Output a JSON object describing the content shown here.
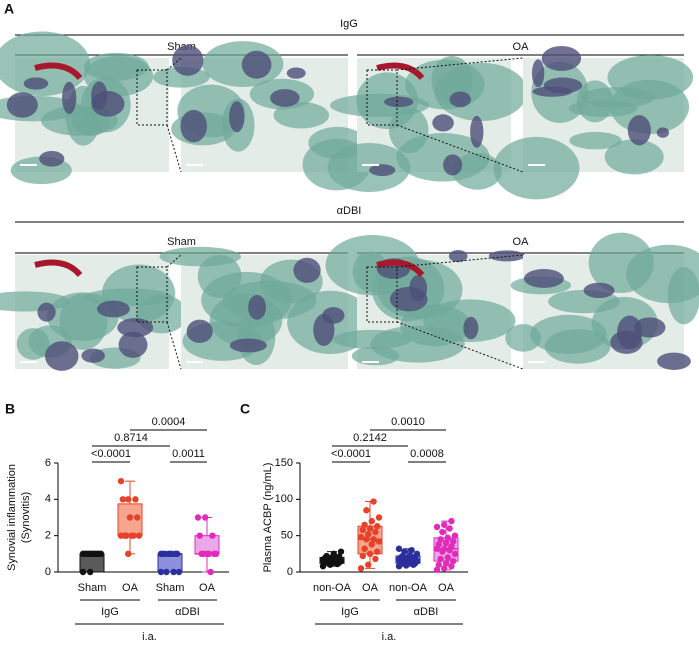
{
  "panel_a": {
    "label": "A",
    "rows": [
      {
        "title": "IgG",
        "columns": [
          "Sham",
          "OA"
        ]
      },
      {
        "title": "αDBI",
        "columns": [
          "Sham",
          "OA"
        ]
      }
    ]
  },
  "chart_data": [
    {
      "type": "box",
      "panel_label": "B",
      "ylabel": [
        "Synovial inflammation",
        "(Synovitis)"
      ],
      "categories": [
        "Sham",
        "OA",
        "Sham",
        "OA"
      ],
      "groups": [
        "IgG",
        "αDBI"
      ],
      "group_caption": "i.a.",
      "ylim": [
        0,
        6
      ],
      "yticks": [
        0,
        2,
        4,
        6
      ],
      "box_colors": [
        "#5a5a5a",
        "#f5a68c",
        "#8d90dc",
        "#eaa8ea"
      ],
      "point_colors": [
        "#111111",
        "#e8412a",
        "#2b2f9c",
        "#e02cb8"
      ],
      "comparisons": [
        "0.0004",
        "0.8714",
        "<0.0001",
        "0.0011"
      ],
      "boxes": [
        {
          "min": 0,
          "q1": 0,
          "median": 1,
          "q3": 1,
          "max": 1,
          "points": [
            1,
            1,
            1,
            1,
            1,
            1,
            1,
            1,
            1,
            1,
            1,
            0,
            0
          ]
        },
        {
          "min": 1,
          "q1": 2,
          "median": 2,
          "q3": 3.75,
          "max": 5,
          "points": [
            5,
            4,
            4,
            4,
            3,
            3,
            2,
            2,
            2,
            2,
            2,
            2,
            1
          ]
        },
        {
          "min": 0,
          "q1": 0,
          "median": 1,
          "q3": 1,
          "max": 1,
          "points": [
            1,
            1,
            1,
            1,
            1,
            1,
            1,
            1,
            0,
            0,
            0,
            0
          ]
        },
        {
          "min": 0,
          "q1": 1,
          "median": 1,
          "q3": 2,
          "max": 3,
          "points": [
            3,
            3,
            2,
            2,
            1,
            1,
            1,
            1,
            1,
            1,
            0
          ]
        }
      ]
    },
    {
      "type": "box",
      "panel_label": "C",
      "ylabel": [
        "Plasma ACBP (ng/mL)"
      ],
      "categories": [
        "non-OA",
        "OA",
        "non-OA",
        "OA"
      ],
      "groups": [
        "IgG",
        "αDBI"
      ],
      "group_caption": "i.a.",
      "ylim": [
        0,
        150
      ],
      "yticks": [
        0,
        50,
        100,
        150
      ],
      "box_colors": [
        "#5a5a5a",
        "#f5a68c",
        "#8d90dc",
        "#eaa8ea"
      ],
      "point_colors": [
        "#111111",
        "#e8412a",
        "#2b2f9c",
        "#e02cb8"
      ],
      "comparisons": [
        "0.0010",
        "0.2142",
        "<0.0001",
        "0.0008"
      ],
      "boxes": [
        {
          "min": 8,
          "q1": 12,
          "median": 15,
          "q3": 20,
          "max": 28,
          "points": [
            8,
            10,
            11,
            12,
            12,
            13,
            14,
            14,
            15,
            15,
            15,
            16,
            17,
            18,
            19,
            20,
            21,
            22,
            25,
            28
          ]
        },
        {
          "min": 5,
          "q1": 25,
          "median": 45,
          "q3": 63,
          "max": 97,
          "points": [
            5,
            10,
            18,
            22,
            25,
            28,
            32,
            38,
            42,
            45,
            45,
            48,
            52,
            55,
            58,
            60,
            63,
            65,
            70,
            75,
            85,
            97
          ]
        },
        {
          "min": 8,
          "q1": 12,
          "median": 17,
          "q3": 22,
          "max": 32,
          "points": [
            8,
            9,
            10,
            11,
            12,
            12,
            13,
            14,
            15,
            16,
            17,
            17,
            18,
            19,
            20,
            20,
            21,
            22,
            23,
            25,
            28,
            30,
            32
          ]
        },
        {
          "min": 3,
          "q1": 15,
          "median": 32,
          "q3": 47,
          "max": 70,
          "points": [
            3,
            5,
            8,
            10,
            12,
            15,
            18,
            20,
            25,
            28,
            30,
            32,
            32,
            35,
            38,
            40,
            42,
            45,
            47,
            50,
            55,
            60,
            62,
            65,
            70
          ]
        }
      ]
    }
  ]
}
